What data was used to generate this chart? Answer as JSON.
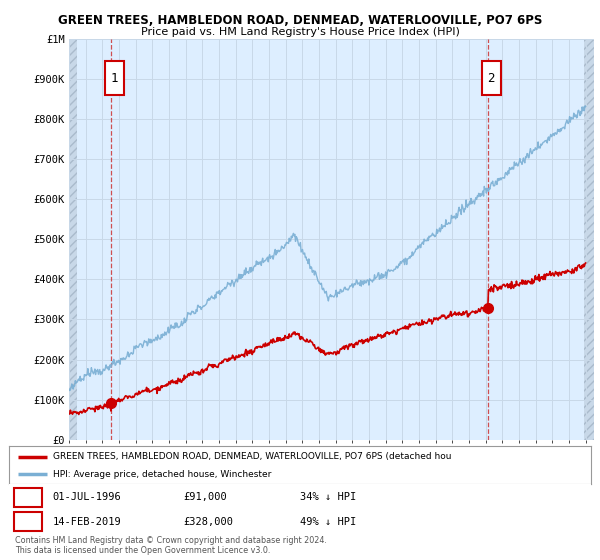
{
  "title1": "GREEN TREES, HAMBLEDON ROAD, DENMEAD, WATERLOOVILLE, PO7 6PS",
  "title2": "Price paid vs. HM Land Registry's House Price Index (HPI)",
  "ylabel_ticks": [
    "£0",
    "£100K",
    "£200K",
    "£300K",
    "£400K",
    "£500K",
    "£600K",
    "£700K",
    "£800K",
    "£900K",
    "£1M"
  ],
  "ytick_values": [
    0,
    100000,
    200000,
    300000,
    400000,
    500000,
    600000,
    700000,
    800000,
    900000,
    1000000
  ],
  "x_start_year": 1994,
  "x_end_year": 2025,
  "point1": {
    "date_num": 1996.5,
    "value": 91000,
    "label": "1"
  },
  "point2": {
    "date_num": 2019.12,
    "value": 328000,
    "label": "2"
  },
  "red_line_color": "#cc0000",
  "blue_line_color": "#7aafd4",
  "annotation_box_color": "#cc0000",
  "grid_color": "#c8d8e8",
  "bg_plot_color": "#ddeeff",
  "hatch_strip_color": "#c8d8e8",
  "legend_line1": "GREEN TREES, HAMBLEDON ROAD, DENMEAD, WATERLOOVILLE, PO7 6PS (detached hou",
  "legend_line2": "HPI: Average price, detached house, Winchester",
  "footer1": "Contains HM Land Registry data © Crown copyright and database right 2024.",
  "footer2": "This data is licensed under the Open Government Licence v3.0.",
  "background_color": "#ffffff"
}
